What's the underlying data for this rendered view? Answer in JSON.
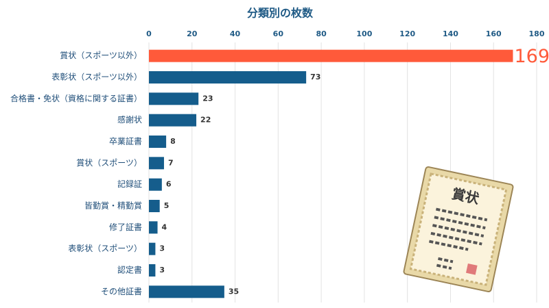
{
  "chart_data": {
    "type": "hbar",
    "title": "分類別の枚数",
    "categories": [
      "賞状（スポーツ以外）",
      "表彰状（スポーツ以外）",
      "合格書・免状（資格に関する証書）",
      "感謝状",
      "卒業証書",
      "賞状（スポーツ）",
      "記録証",
      "皆勤賞・精勤賞",
      "修了証書",
      "表彰状（スポーツ）",
      "認定書",
      "その他証書"
    ],
    "values": [
      169,
      73,
      23,
      22,
      8,
      7,
      6,
      5,
      4,
      3,
      3,
      35
    ],
    "colors": [
      "#ff5a3a",
      "#155d8c",
      "#155d8c",
      "#155d8c",
      "#155d8c",
      "#155d8c",
      "#155d8c",
      "#155d8c",
      "#155d8c",
      "#155d8c",
      "#155d8c",
      "#155d8c"
    ],
    "xlim": [
      0,
      180
    ],
    "xticks": [
      0,
      20,
      40,
      60,
      80,
      100,
      120,
      140,
      160,
      180
    ],
    "grid": true,
    "annotation": "賞状"
  }
}
